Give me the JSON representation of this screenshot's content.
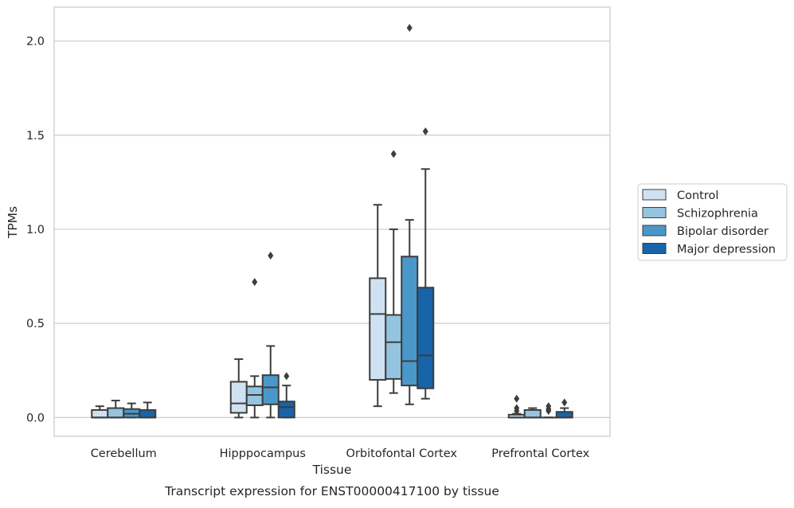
{
  "chart_data": {
    "type": "box",
    "title": "",
    "caption": "Transcript expression for ENST00000417100 by tissue",
    "xlabel": "Tissue",
    "ylabel": "TPMs",
    "ylim": [
      -0.1,
      2.18
    ],
    "yticks": [
      0.0,
      0.5,
      1.0,
      1.5,
      2.0
    ],
    "ytick_labels": [
      "0.0",
      "0.5",
      "1.0",
      "1.5",
      "2.0"
    ],
    "grid": "horizontal",
    "legend_position": "right",
    "categories": [
      "Cerebellum",
      "Hipppocampus",
      "Orbitofontal Cortex",
      "Prefrontal Cortex"
    ],
    "series": [
      {
        "name": "Control",
        "color": "#d0e1f2",
        "boxes": [
          {
            "whislo": 0.0,
            "q1": 0.0,
            "med": 0.0,
            "q3": 0.04,
            "whishi": 0.06,
            "fliers": []
          },
          {
            "whislo": 0.0,
            "q1": 0.025,
            "med": 0.075,
            "q3": 0.19,
            "whishi": 0.31,
            "fliers": []
          },
          {
            "whislo": 0.06,
            "q1": 0.2,
            "med": 0.55,
            "q3": 0.74,
            "whishi": 1.13,
            "fliers": []
          },
          {
            "whislo": 0.0,
            "q1": 0.0,
            "med": 0.0,
            "q3": 0.015,
            "whishi": 0.02,
            "fliers": [
              0.035,
              0.05,
              0.1
            ]
          }
        ]
      },
      {
        "name": "Schizophrenia",
        "color": "#94c4df",
        "boxes": [
          {
            "whislo": 0.0,
            "q1": 0.0,
            "med": 0.0,
            "q3": 0.05,
            "whishi": 0.09,
            "fliers": []
          },
          {
            "whislo": 0.0,
            "q1": 0.065,
            "med": 0.12,
            "q3": 0.165,
            "whishi": 0.22,
            "fliers": [
              0.72
            ]
          },
          {
            "whislo": 0.13,
            "q1": 0.205,
            "med": 0.4,
            "q3": 0.545,
            "whishi": 1.0,
            "fliers": [
              1.4
            ]
          },
          {
            "whislo": 0.0,
            "q1": 0.0,
            "med": 0.0,
            "q3": 0.04,
            "whishi": 0.05,
            "fliers": []
          }
        ]
      },
      {
        "name": "Bipolar disorder",
        "color": "#4a98c9",
        "boxes": [
          {
            "whislo": 0.0,
            "q1": 0.0,
            "med": 0.02,
            "q3": 0.045,
            "whishi": 0.075,
            "fliers": []
          },
          {
            "whislo": 0.0,
            "q1": 0.07,
            "med": 0.16,
            "q3": 0.225,
            "whishi": 0.38,
            "fliers": [
              0.86
            ]
          },
          {
            "whislo": 0.07,
            "q1": 0.17,
            "med": 0.3,
            "q3": 0.855,
            "whishi": 1.05,
            "fliers": [
              2.07
            ]
          },
          {
            "whislo": 0.0,
            "q1": 0.0,
            "med": 0.0,
            "q3": 0.0,
            "whishi": 0.0,
            "fliers": [
              0.035,
              0.045,
              0.06
            ]
          }
        ]
      },
      {
        "name": "Major depression",
        "color": "#1764ab",
        "boxes": [
          {
            "whislo": 0.0,
            "q1": 0.0,
            "med": 0.0,
            "q3": 0.04,
            "whishi": 0.08,
            "fliers": []
          },
          {
            "whislo": 0.0,
            "q1": 0.0,
            "med": 0.055,
            "q3": 0.085,
            "whishi": 0.17,
            "fliers": [
              0.22
            ]
          },
          {
            "whislo": 0.1,
            "q1": 0.155,
            "med": 0.33,
            "q3": 0.69,
            "whishi": 1.32,
            "fliers": [
              1.52
            ]
          },
          {
            "whislo": 0.0,
            "q1": 0.0,
            "med": 0.0,
            "q3": 0.03,
            "whishi": 0.05,
            "fliers": [
              0.08
            ]
          }
        ]
      }
    ]
  }
}
